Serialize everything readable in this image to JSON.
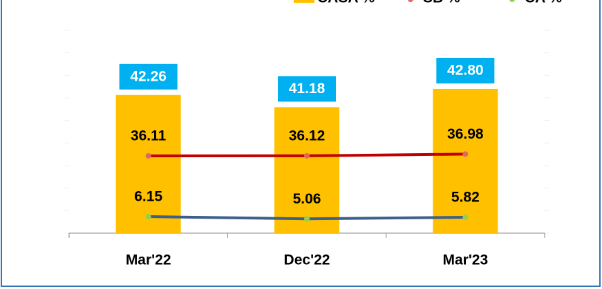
{
  "chart_data": {
    "type": "bar_line",
    "categories": [
      "Mar'22",
      "Dec'22",
      "Mar'23"
    ],
    "ylim": [
      30,
      48
    ],
    "y2lim": [
      -2,
      98
    ],
    "legend": "top-right",
    "series": [
      {
        "name": "CASA %",
        "type": "bar",
        "color": "#ffc000",
        "values": [
          42.26,
          41.18,
          42.8
        ],
        "value_labels": [
          "42.26",
          "41.18",
          "42.80"
        ]
      },
      {
        "name": "SB %",
        "type": "line",
        "axis": "y2",
        "color": "#c00000",
        "marker_color": "#e06666",
        "values": [
          36.11,
          36.12,
          36.98
        ],
        "value_labels": [
          "36.11",
          "36.12",
          "36.98"
        ]
      },
      {
        "name": "CA %",
        "type": "line",
        "axis": "y2",
        "color": "#3d5f8c",
        "marker_color": "#92d050",
        "values": [
          6.15,
          5.06,
          5.82
        ],
        "value_labels": [
          "6.15",
          "5.06",
          "5.82"
        ]
      }
    ]
  }
}
